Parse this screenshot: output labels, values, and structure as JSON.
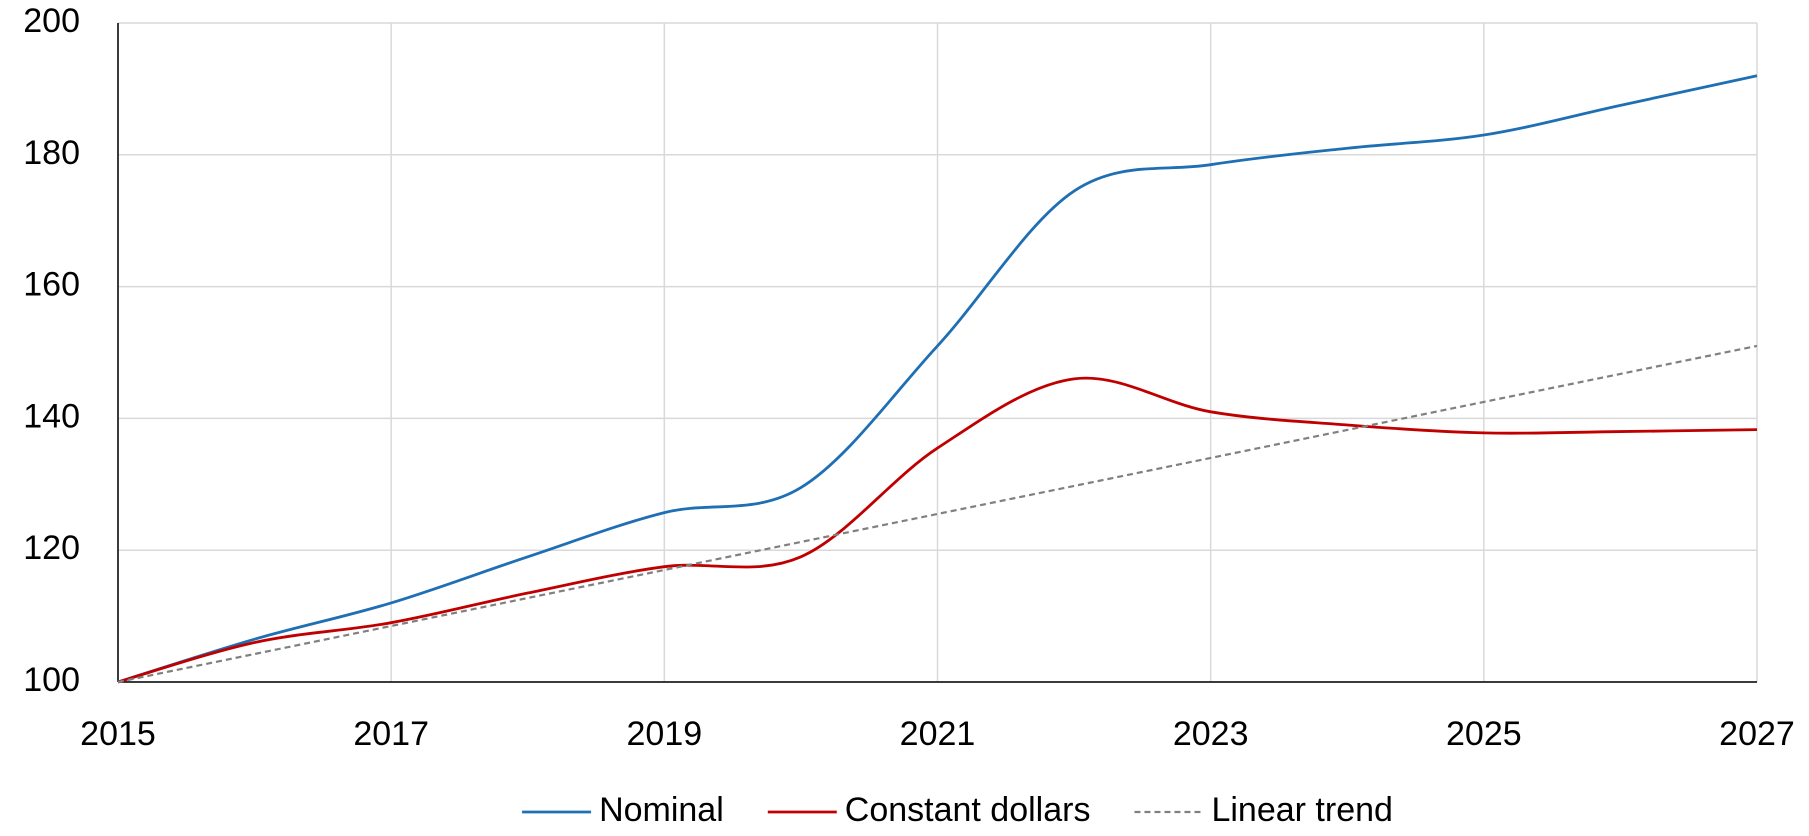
{
  "chart_data": {
    "type": "line",
    "x": [
      2015,
      2016,
      2017,
      2018,
      2019,
      2020,
      2021,
      2022,
      2023,
      2024,
      2025,
      2026,
      2027
    ],
    "series": [
      {
        "name": "Nominal",
        "color": "#1f6fb4",
        "style": "solid",
        "values": [
          100,
          106.5,
          112,
          119,
          125.7,
          129.5,
          151,
          174.5,
          178.5,
          181,
          183,
          187.5,
          192
        ]
      },
      {
        "name": "Constant dollars",
        "color": "#c00000",
        "style": "solid",
        "values": [
          100,
          106,
          109,
          113.5,
          117.5,
          119,
          135.5,
          146,
          141,
          139,
          137.8,
          138,
          138.3
        ]
      },
      {
        "name": "Linear trend",
        "color": "#808080",
        "style": "dashed",
        "values": [
          100,
          104.25,
          108.5,
          112.75,
          117,
          121.25,
          125.5,
          129.75,
          134,
          138.25,
          142.5,
          146.75,
          151
        ]
      }
    ],
    "xlim": [
      2015,
      2027
    ],
    "xticks": [
      2015,
      2017,
      2019,
      2021,
      2023,
      2025,
      2027
    ],
    "ylim": [
      100,
      200
    ],
    "yticks": [
      100,
      120,
      140,
      160,
      180,
      200
    ],
    "grid": true,
    "legend": "bottom"
  }
}
